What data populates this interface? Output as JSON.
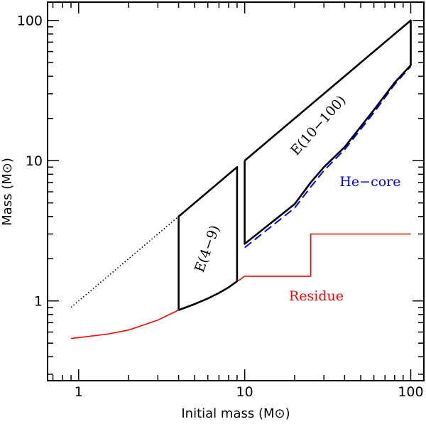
{
  "chart_data": {
    "type": "line",
    "title": "",
    "xlabel": "Initial mass (M⊙)",
    "ylabel": "Mass (M⊙)",
    "xscale": "log",
    "yscale": "log",
    "xlim": [
      0.65,
      120
    ],
    "ylim": [
      0.27,
      135
    ],
    "grid": false,
    "legend": "none",
    "x_ticks": [
      {
        "value": 1,
        "label": "1"
      },
      {
        "value": 10,
        "label": "10"
      },
      {
        "value": 100,
        "label": "100"
      }
    ],
    "y_ticks": [
      {
        "value": 1,
        "label": "1"
      },
      {
        "value": 10,
        "label": "10"
      },
      {
        "value": 100,
        "label": "100"
      }
    ],
    "series": [
      {
        "key": "initial-mass-dotted",
        "color": "#000000",
        "style": "dotted",
        "points": [
          [
            0.9,
            0.9
          ],
          [
            4,
            4
          ]
        ]
      },
      {
        "key": "initial-mass-dotted-upper",
        "color": "#000000",
        "style": "dotted",
        "points": [
          [
            10,
            10
          ],
          [
            100,
            100
          ]
        ]
      },
      {
        "key": "residue",
        "color": "#ff0000",
        "style": "solid",
        "points": [
          [
            0.9,
            0.54
          ],
          [
            1.5,
            0.58
          ],
          [
            2,
            0.62
          ],
          [
            3,
            0.73
          ],
          [
            4,
            0.86
          ],
          [
            5,
            0.95
          ],
          [
            6,
            1.04
          ],
          [
            7,
            1.14
          ],
          [
            8,
            1.25
          ],
          [
            9,
            1.38
          ],
          [
            9.4,
            1.42
          ],
          [
            10,
            1.5
          ],
          [
            25,
            1.5
          ],
          [
            25,
            3.0
          ],
          [
            100,
            3.0
          ]
        ]
      },
      {
        "key": "he-core",
        "color": "#0000ff",
        "style": "dashed",
        "points": [
          [
            10,
            2.4
          ],
          [
            20,
            4.6
          ],
          [
            25,
            6.5
          ],
          [
            30,
            8.5
          ],
          [
            40,
            12
          ],
          [
            60,
            22
          ],
          [
            80,
            35
          ],
          [
            100,
            47
          ]
        ]
      },
      {
        "key": "ejecta-4-9-boundary",
        "color": "#000000",
        "style": "solid",
        "points": [
          [
            4,
            0.86
          ],
          [
            4,
            4
          ],
          [
            9,
            9
          ],
          [
            9,
            1.38
          ],
          [
            8,
            1.25
          ],
          [
            7,
            1.14
          ],
          [
            6,
            1.04
          ],
          [
            5,
            0.95
          ],
          [
            4,
            0.86
          ]
        ]
      },
      {
        "key": "ejecta-10-100-boundary",
        "color": "#000000",
        "style": "solid",
        "points": [
          [
            10,
            10
          ],
          [
            100,
            100
          ],
          [
            100,
            48
          ],
          [
            80,
            36
          ],
          [
            60,
            23
          ],
          [
            40,
            12.5
          ],
          [
            30,
            9
          ],
          [
            25,
            7
          ],
          [
            20,
            4.9
          ],
          [
            10,
            2.55
          ],
          [
            10,
            10
          ]
        ]
      }
    ],
    "annotations": [
      {
        "key": "e49",
        "text": "E(4−9)",
        "x": 6.3,
        "y": 2.3,
        "rotation": -70,
        "color": "#000000"
      },
      {
        "key": "e10100",
        "text": "E(10−100)",
        "x": 29,
        "y": 17,
        "rotation": -48,
        "color": "#000000"
      },
      {
        "key": "hecore",
        "text": "He−core",
        "x": 57,
        "y": 6.6,
        "rotation": 0,
        "color": "#0000ff"
      },
      {
        "key": "residue",
        "text": "Residue",
        "x": 27,
        "y": 1.01,
        "rotation": 0,
        "color": "#ff0000"
      }
    ]
  }
}
